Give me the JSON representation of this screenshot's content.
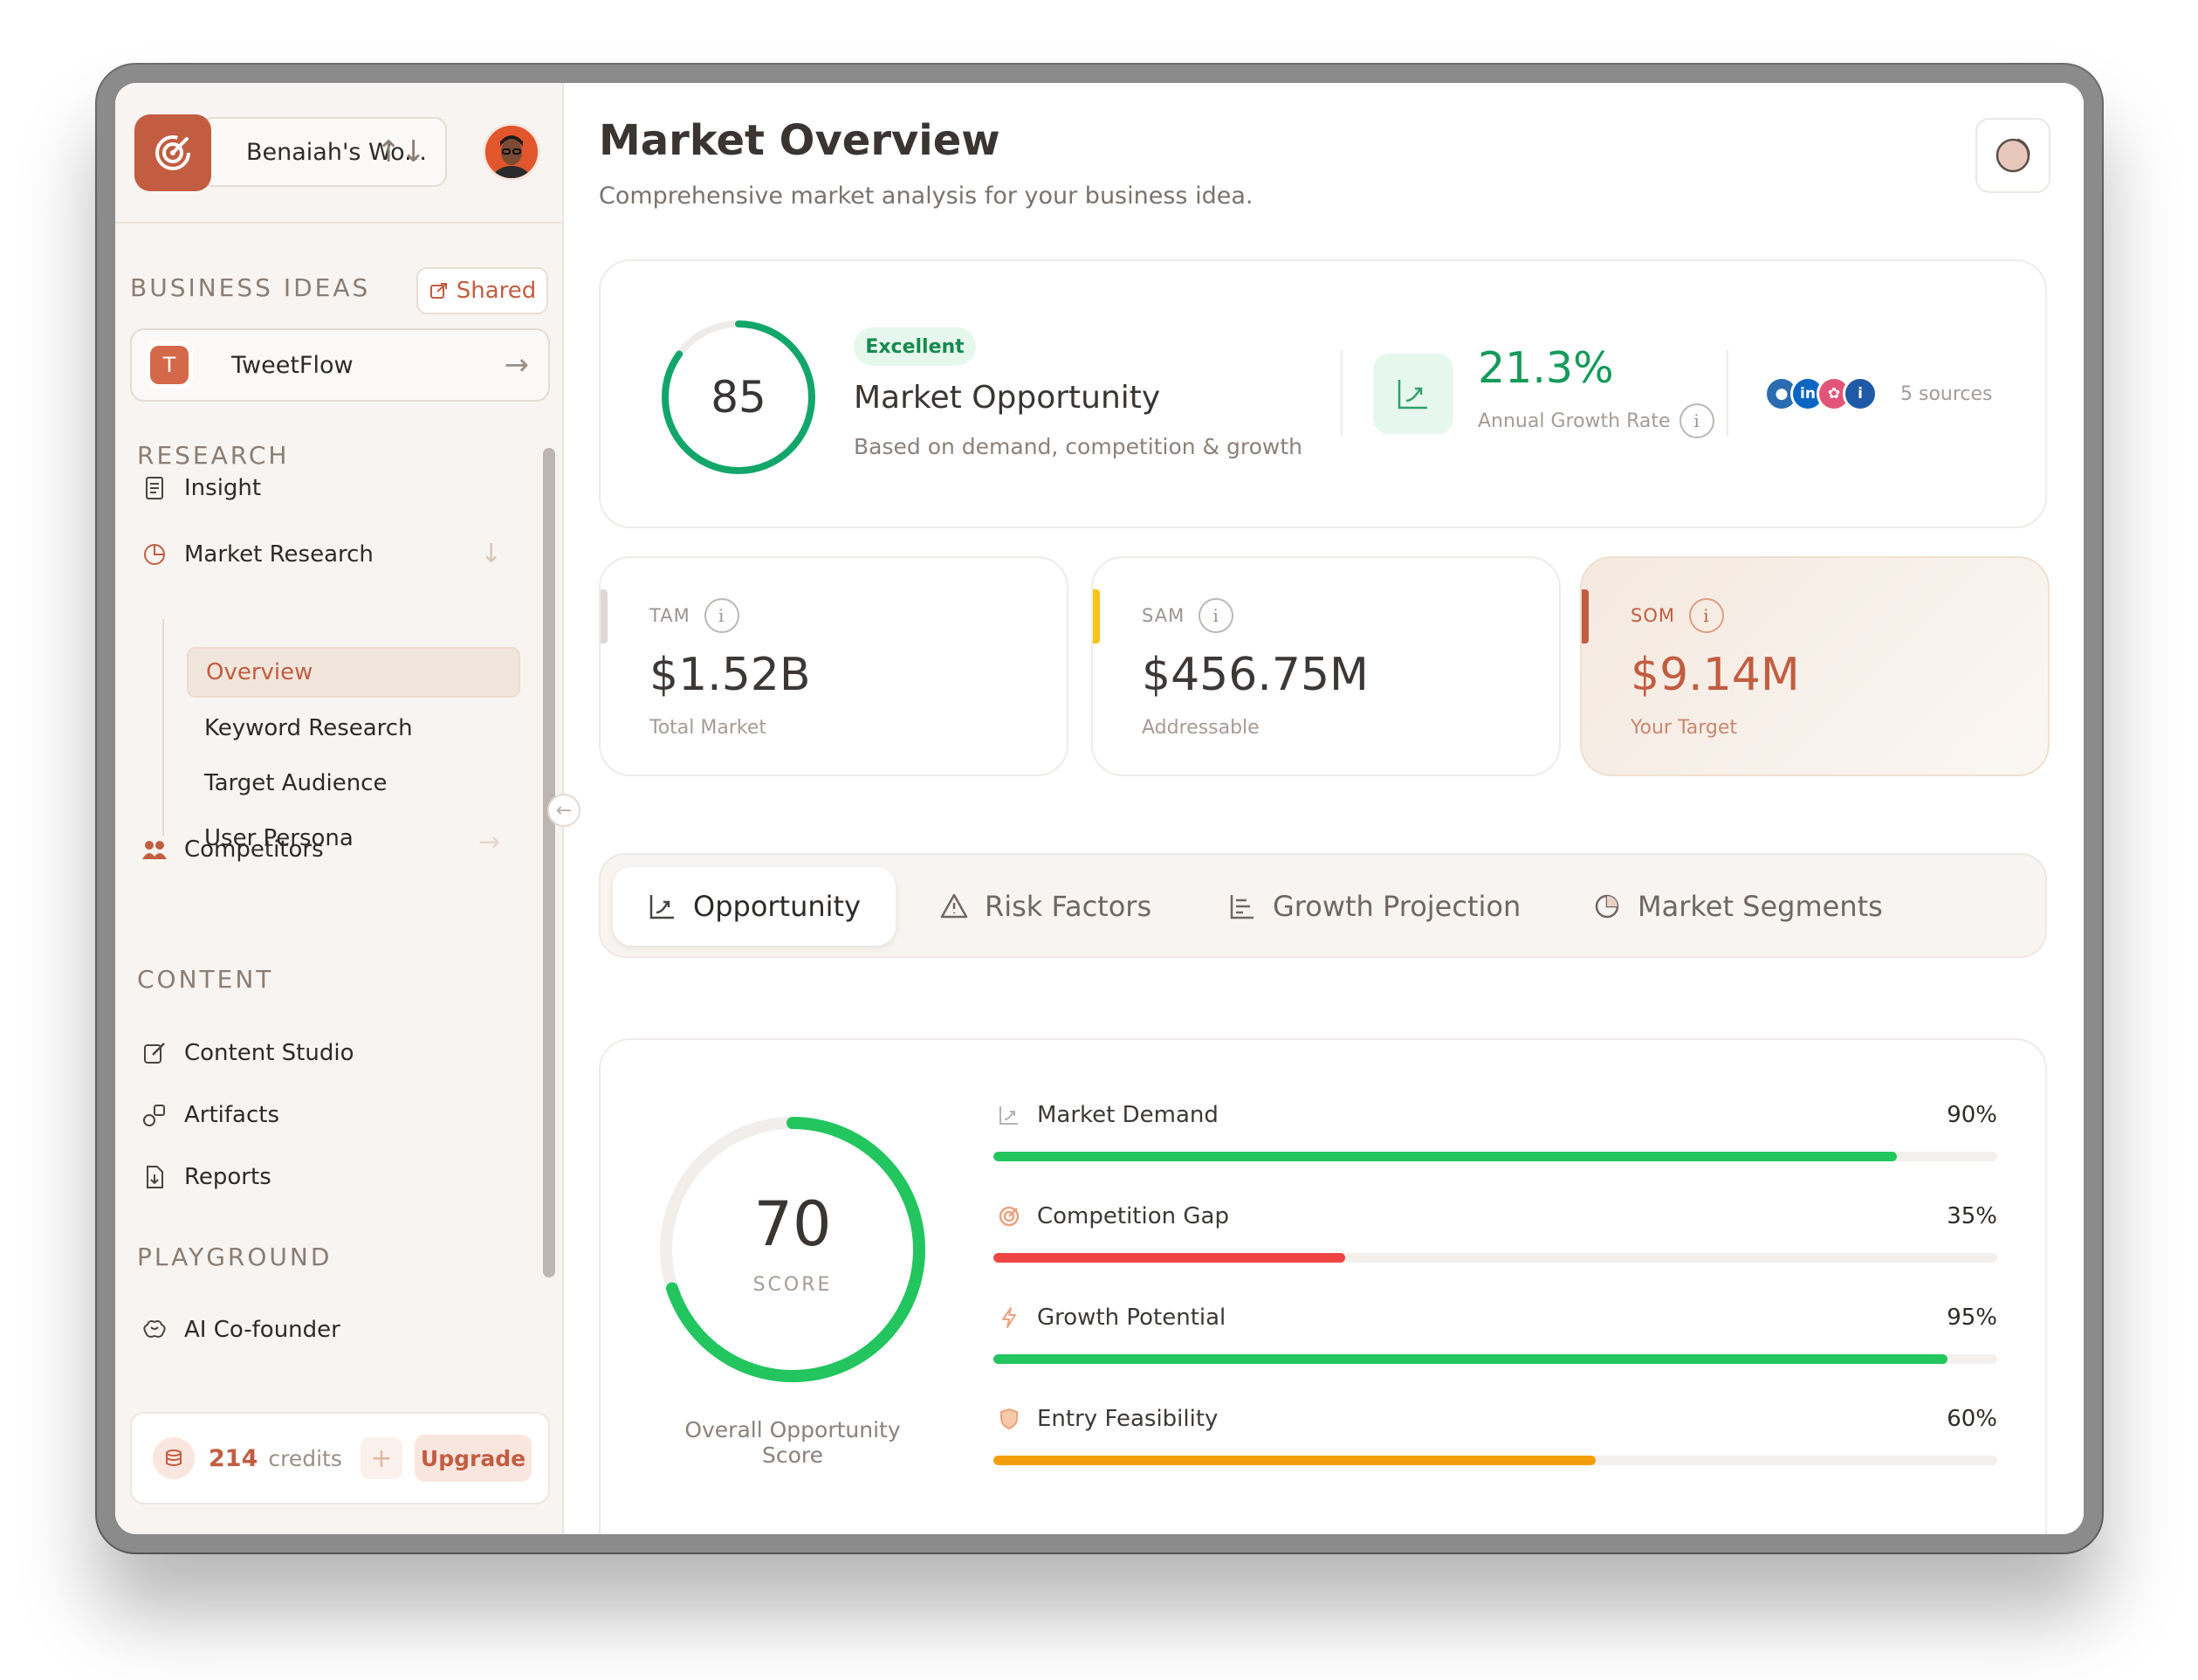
{
  "workspace": {
    "name": "Benaiah's Wo...",
    "switch_icon": "arrows-up-down-icon"
  },
  "sidebar": {
    "business_ideas_label": "BUSINESS IDEAS",
    "shared_label": "Shared",
    "idea": {
      "initial": "T",
      "name": "TweetFlow"
    },
    "research_label": "RESEARCH",
    "research_items": [
      {
        "label": "Insight",
        "icon": "document-icon"
      },
      {
        "label": "Market Research",
        "icon": "pie-chart-icon"
      },
      {
        "label": "Competitors",
        "icon": "users-icon"
      }
    ],
    "market_sub_items": [
      {
        "label": "Overview",
        "active": true
      },
      {
        "label": "Keyword Research"
      },
      {
        "label": "Target Audience"
      },
      {
        "label": "User Persona"
      }
    ],
    "content_label": "CONTENT",
    "content_items": [
      {
        "label": "Content Studio",
        "icon": "edit-icon"
      },
      {
        "label": "Artifacts",
        "icon": "shapes-icon"
      },
      {
        "label": "Reports",
        "icon": "file-download-icon"
      }
    ],
    "playground_label": "PLAYGROUND",
    "playground_items": [
      {
        "label": "AI Co-founder",
        "icon": "brain-icon"
      }
    ],
    "credits": {
      "count": "214",
      "label": "credits",
      "plus": "+",
      "upgrade": "Upgrade"
    }
  },
  "header": {
    "title": "Market Overview",
    "subtitle": "Comprehensive market analysis for your business idea."
  },
  "hero": {
    "score": "85",
    "score_value": 85,
    "badge": "Excellent",
    "title": "Market Opportunity",
    "subtitle": "Based on demand, competition & growth",
    "growth_value": "21.3%",
    "growth_label": "Annual Growth Rate",
    "sources_label": "5 sources"
  },
  "stats": [
    {
      "label": "TAM",
      "value": "$1.52B",
      "sub": "Total Market",
      "color": "#d9d5d2"
    },
    {
      "label": "SAM",
      "value": "$456.75M",
      "sub": "Addressable",
      "color": "#f5c518"
    },
    {
      "label": "SOM",
      "value": "$9.14M",
      "sub": "Your Target",
      "color": "#c25d41"
    }
  ],
  "tabs": [
    {
      "label": "Opportunity",
      "icon": "trend-chart-icon",
      "active": true
    },
    {
      "label": "Risk Factors",
      "icon": "warning-icon"
    },
    {
      "label": "Growth Projection",
      "icon": "bar-chart-icon"
    },
    {
      "label": "Market Segments",
      "icon": "pie-chart-icon"
    }
  ],
  "opportunity": {
    "score": "70",
    "score_value": 70,
    "score_caption": "SCORE",
    "score_label": "Overall Opportunity Score",
    "metrics": [
      {
        "label": "Market Demand",
        "pct": "90%",
        "value": 90,
        "color": "#22c55e",
        "icon": "trend-chart-icon"
      },
      {
        "label": "Competition Gap",
        "pct": "35%",
        "value": 35,
        "color": "#ef4444",
        "icon": "target-icon"
      },
      {
        "label": "Growth Potential",
        "pct": "95%",
        "value": 95,
        "color": "#22c55e",
        "icon": "lightning-icon"
      },
      {
        "label": "Entry Feasibility",
        "pct": "60%",
        "value": 60,
        "color": "#f59e0b",
        "icon": "shield-icon"
      }
    ]
  }
}
